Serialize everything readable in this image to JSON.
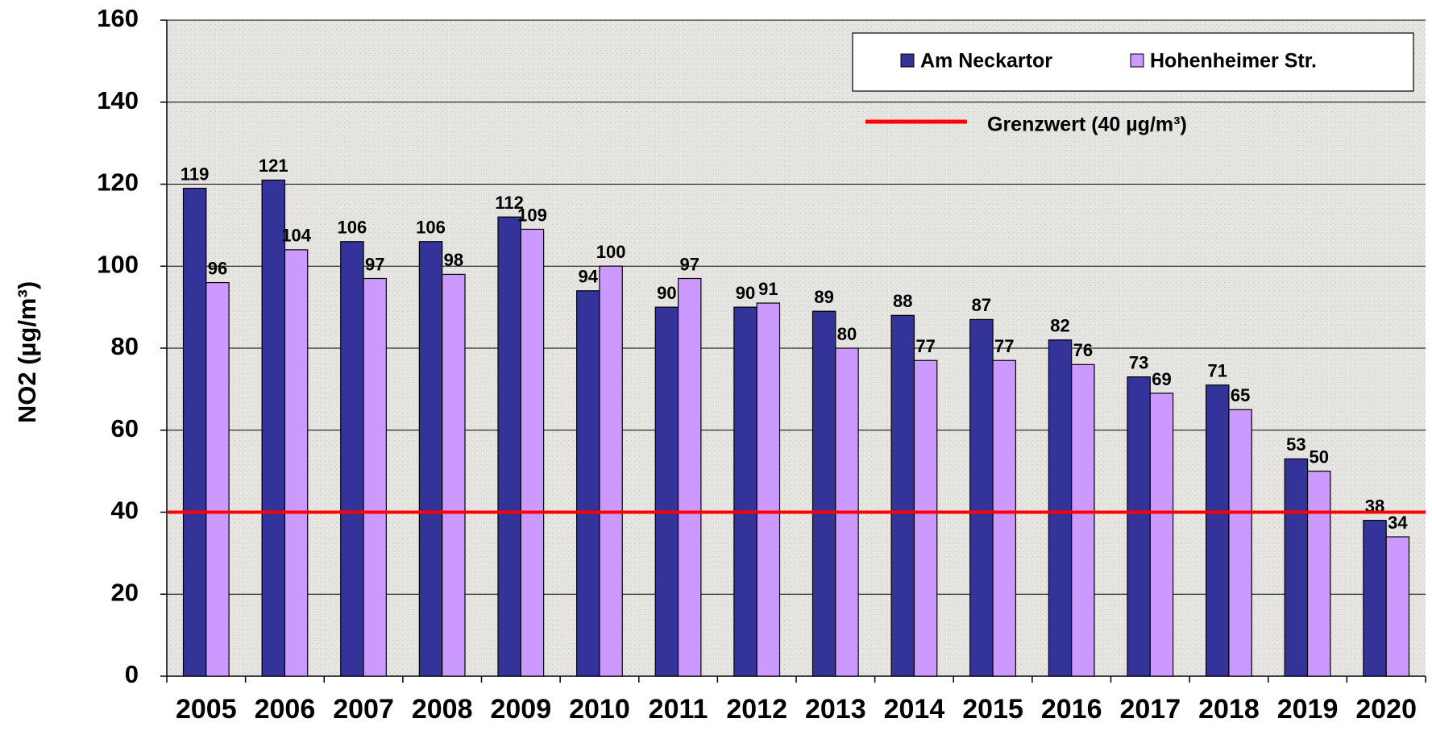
{
  "chart_data": {
    "type": "bar",
    "y_axis_label": "NO2 (µg/m³)",
    "categories": [
      "2005",
      "2006",
      "2007",
      "2008",
      "2009",
      "2010",
      "2011",
      "2012",
      "2013",
      "2014",
      "2015",
      "2016",
      "2017",
      "2018",
      "2019",
      "2020"
    ],
    "series": [
      {
        "name": "Am Neckartor",
        "color": "#333399",
        "values": [
          119,
          121,
          106,
          106,
          112,
          94,
          90,
          90,
          89,
          88,
          87,
          82,
          73,
          71,
          53,
          38
        ]
      },
      {
        "name": "Hohenheimer Str.",
        "color": "#cc99ff",
        "values": [
          96,
          104,
          97,
          98,
          109,
          100,
          97,
          91,
          80,
          77,
          77,
          76,
          69,
          65,
          50,
          34
        ]
      }
    ],
    "reference_line": {
      "value": 40,
      "label": "Grenzwert (40 µg/m³)",
      "color": "#ff0000"
    },
    "ylim": [
      0,
      160
    ],
    "yticks": [
      0,
      20,
      40,
      60,
      80,
      100,
      120,
      140,
      160
    ],
    "grid": true,
    "legend_position": "top-right"
  }
}
